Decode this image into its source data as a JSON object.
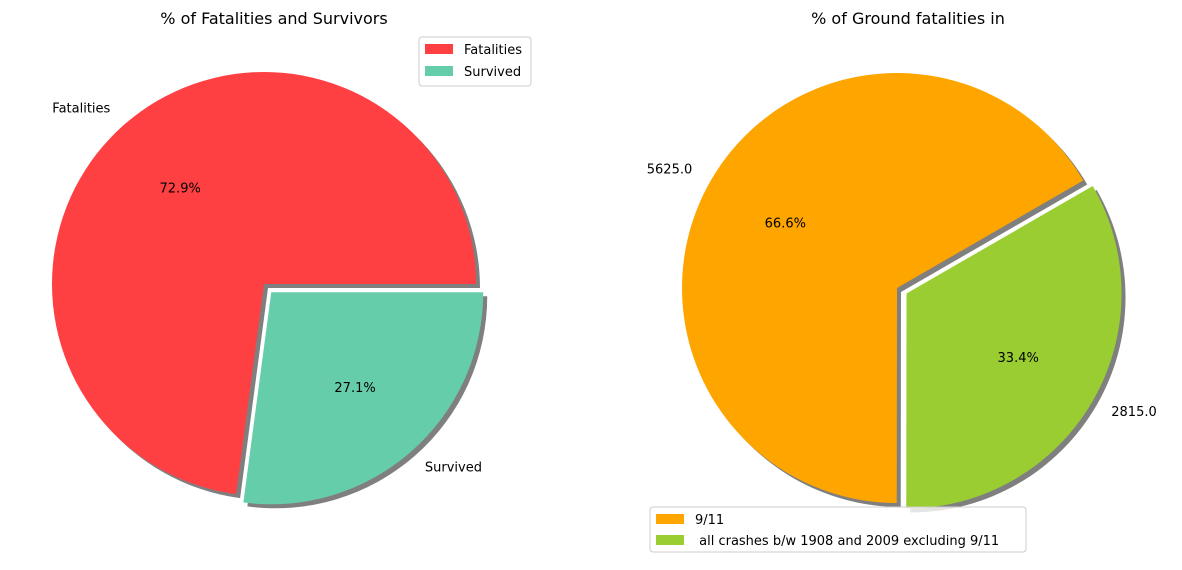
{
  "chart_data": [
    {
      "type": "pie",
      "title": "% of Fatalities and Survivors",
      "categories": [
        "Fatalities",
        "Survived"
      ],
      "values": [
        72.9,
        27.1
      ],
      "pct_labels": [
        "72.9%",
        "27.1%"
      ],
      "slice_labels": [
        "Fatalities",
        "Survived"
      ],
      "colors": [
        "#ff4043",
        "#66cdaa"
      ],
      "explode": [
        false,
        true
      ],
      "shadow": true,
      "legend": {
        "placement": "top-right",
        "entries": [
          "Fatalities",
          "Survived"
        ]
      }
    },
    {
      "type": "pie",
      "title": "% of Ground fatalities in",
      "categories": [
        "9/11",
        " all crashes b/w 1908 and 2009 excluding 9/11"
      ],
      "values": [
        5625.0,
        2815.0
      ],
      "pct_labels": [
        "66.6%",
        "33.4%"
      ],
      "slice_labels": [
        "5625.0",
        "2815.0"
      ],
      "colors": [
        "#ffa500",
        "#9acd32"
      ],
      "explode": [
        false,
        true
      ],
      "shadow": true,
      "legend": {
        "placement": "lower-left",
        "entries": [
          "9/11",
          " all crashes b/w 1908 and 2009 excluding 9/11"
        ]
      }
    }
  ]
}
